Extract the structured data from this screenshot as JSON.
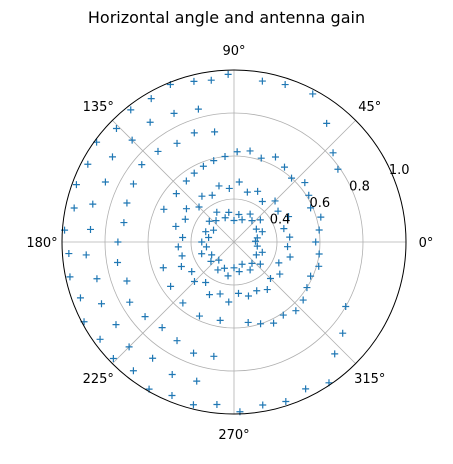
{
  "chart_data": {
    "type": "scatter",
    "projection": "polar",
    "title": "Horizontal angle and antenna gain",
    "marker": "+",
    "color": "#1f77b4",
    "grid": true,
    "theta_unit": "degrees",
    "theta_direction": "counterclockwise",
    "theta_zero": "east",
    "theta_ticks": [
      "0°",
      "45°",
      "90°",
      "135°",
      "180°",
      "225°",
      "270°",
      "315°"
    ],
    "r_range": [
      0.2,
      1.0
    ],
    "r_ticks": [
      "0.4",
      "0.6",
      "0.8",
      "1.0"
    ],
    "series": [
      {
        "points": [
          [
            2,
            0.3
          ],
          [
            10,
            0.31
          ],
          [
            20,
            0.34
          ],
          [
            30,
            0.32
          ],
          [
            40,
            0.36
          ],
          [
            50,
            0.33
          ],
          [
            60,
            0.35
          ],
          [
            70,
            0.31
          ],
          [
            80,
            0.33
          ],
          [
            90,
            0.3
          ],
          [
            100,
            0.34
          ],
          [
            110,
            0.32
          ],
          [
            120,
            0.36
          ],
          [
            130,
            0.33
          ],
          [
            140,
            0.35
          ],
          [
            150,
            0.31
          ],
          [
            160,
            0.34
          ],
          [
            170,
            0.32
          ],
          [
            180,
            0.35
          ],
          [
            190,
            0.33
          ],
          [
            200,
            0.36
          ],
          [
            210,
            0.32
          ],
          [
            220,
            0.34
          ],
          [
            230,
            0.31
          ],
          [
            240,
            0.35
          ],
          [
            250,
            0.33
          ],
          [
            260,
            0.36
          ],
          [
            270,
            0.32
          ],
          [
            280,
            0.34
          ],
          [
            290,
            0.31
          ],
          [
            300,
            0.35
          ],
          [
            310,
            0.33
          ],
          [
            320,
            0.36
          ],
          [
            330,
            0.32
          ],
          [
            340,
            0.34
          ],
          [
            350,
            0.31
          ],
          [
            5,
            0.46
          ],
          [
            15,
            0.44
          ],
          [
            25,
            0.48
          ],
          [
            35,
            0.45
          ],
          [
            45,
            0.47
          ],
          [
            55,
            0.43
          ],
          [
            65,
            0.46
          ],
          [
            75,
            0.44
          ],
          [
            85,
            0.48
          ],
          [
            95,
            0.45
          ],
          [
            105,
            0.47
          ],
          [
            115,
            0.44
          ],
          [
            125,
            0.46
          ],
          [
            135,
            0.43
          ],
          [
            145,
            0.47
          ],
          [
            155,
            0.45
          ],
          [
            165,
            0.48
          ],
          [
            175,
            0.44
          ],
          [
            185,
            0.46
          ],
          [
            195,
            0.45
          ],
          [
            205,
            0.47
          ],
          [
            215,
            0.44
          ],
          [
            225,
            0.46
          ],
          [
            235,
            0.43
          ],
          [
            245,
            0.47
          ],
          [
            255,
            0.45
          ],
          [
            265,
            0.48
          ],
          [
            275,
            0.44
          ],
          [
            285,
            0.46
          ],
          [
            295,
            0.45
          ],
          [
            305,
            0.47
          ],
          [
            315,
            0.44
          ],
          [
            325,
            0.46
          ],
          [
            335,
            0.43
          ],
          [
            345,
            0.47
          ],
          [
            355,
            0.45
          ],
          [
            0,
            0.58
          ],
          [
            8,
            0.6
          ],
          [
            16,
            0.62
          ],
          [
            24,
            0.59
          ],
          [
            32,
            0.61
          ],
          [
            40,
            0.63
          ],
          [
            48,
            0.6
          ],
          [
            56,
            0.62
          ],
          [
            64,
            0.64
          ],
          [
            72,
            0.61
          ],
          [
            80,
            0.63
          ],
          [
            88,
            0.62
          ],
          [
            96,
            0.6
          ],
          [
            104,
            0.59
          ],
          [
            112,
            0.58
          ],
          [
            120,
            0.57
          ],
          [
            128,
            0.56
          ],
          [
            280,
            0.58
          ],
          [
            288,
            0.6
          ],
          [
            296,
            0.62
          ],
          [
            304,
            0.61
          ],
          [
            312,
            0.63
          ],
          [
            320,
            0.62
          ],
          [
            328,
            0.6
          ],
          [
            336,
            0.59
          ],
          [
            344,
            0.61
          ],
          [
            352,
            0.6
          ],
          [
            140,
            0.55
          ],
          [
            155,
            0.56
          ],
          [
            200,
            0.55
          ],
          [
            215,
            0.56
          ],
          [
            230,
            0.57
          ],
          [
            245,
            0.58
          ],
          [
            260,
            0.57
          ],
          [
            100,
            0.72
          ],
          [
            110,
            0.74
          ],
          [
            120,
            0.73
          ],
          [
            130,
            0.75
          ],
          [
            140,
            0.76
          ],
          [
            150,
            0.74
          ],
          [
            160,
            0.73
          ],
          [
            170,
            0.72
          ],
          [
            180,
            0.74
          ],
          [
            190,
            0.75
          ],
          [
            200,
            0.73
          ],
          [
            210,
            0.76
          ],
          [
            220,
            0.74
          ],
          [
            230,
            0.72
          ],
          [
            240,
            0.73
          ],
          [
            250,
            0.75
          ],
          [
            260,
            0.74
          ],
          [
            115,
            0.86
          ],
          [
            125,
            0.88
          ],
          [
            135,
            0.87
          ],
          [
            145,
            0.89
          ],
          [
            155,
            0.86
          ],
          [
            165,
            0.88
          ],
          [
            175,
            0.87
          ],
          [
            185,
            0.89
          ],
          [
            195,
            0.86
          ],
          [
            205,
            0.88
          ],
          [
            215,
            0.87
          ],
          [
            225,
            0.89
          ],
          [
            235,
            0.86
          ],
          [
            245,
            0.88
          ],
          [
            255,
            0.87
          ],
          [
            105,
            0.84
          ],
          [
            92,
            0.98
          ],
          [
            98,
            0.96
          ],
          [
            104,
            0.97
          ],
          [
            112,
            0.99
          ],
          [
            120,
            0.97
          ],
          [
            128,
            0.98
          ],
          [
            136,
            0.96
          ],
          [
            144,
            0.99
          ],
          [
            152,
            0.97
          ],
          [
            160,
            0.98
          ],
          [
            168,
            0.96
          ],
          [
            176,
            0.99
          ],
          [
            184,
            0.97
          ],
          [
            192,
            0.98
          ],
          [
            200,
            0.96
          ],
          [
            208,
            0.99
          ],
          [
            216,
            0.97
          ],
          [
            224,
            0.98
          ],
          [
            232,
            0.96
          ],
          [
            240,
            0.99
          ],
          [
            248,
            0.97
          ],
          [
            256,
            0.98
          ],
          [
            264,
            0.96
          ],
          [
            272,
            0.99
          ],
          [
            280,
            0.97
          ],
          [
            288,
            0.98
          ],
          [
            296,
            0.96
          ],
          [
            304,
            0.99
          ],
          [
            72,
            0.97
          ],
          [
            62,
            0.98
          ],
          [
            80,
            0.96
          ],
          [
            52,
            0.9
          ],
          [
            42,
            0.82
          ],
          [
            35,
            0.79
          ],
          [
            320,
            0.86
          ],
          [
            330,
            0.8
          ],
          [
            312,
            0.9
          ]
        ]
      }
    ]
  }
}
